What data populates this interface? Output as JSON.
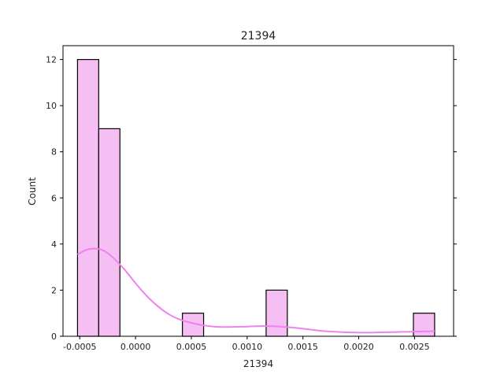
{
  "chart_data": {
    "type": "bar",
    "title": "21394",
    "xlabel": "21394",
    "ylabel": "Count",
    "xlim": [
      -0.00065,
      0.00285
    ],
    "ylim": [
      0,
      12.6
    ],
    "xticks": [
      {
        "value": -0.0005,
        "label": "-0.0005"
      },
      {
        "value": 0.0,
        "label": "0.0000"
      },
      {
        "value": 0.0005,
        "label": "0.0005"
      },
      {
        "value": 0.001,
        "label": "0.0010"
      },
      {
        "value": 0.0015,
        "label": "0.0015"
      },
      {
        "value": 0.002,
        "label": "0.0020"
      },
      {
        "value": 0.0025,
        "label": "0.0025"
      }
    ],
    "yticks": [
      {
        "value": 0,
        "label": "0"
      },
      {
        "value": 2,
        "label": "2"
      },
      {
        "value": 4,
        "label": "4"
      },
      {
        "value": 6,
        "label": "6"
      },
      {
        "value": 8,
        "label": "8"
      },
      {
        "value": 10,
        "label": "10"
      },
      {
        "value": 12,
        "label": "12"
      }
    ],
    "bins": [
      {
        "x0": -0.00052,
        "x1": -0.00033,
        "count": 12
      },
      {
        "x0": -0.00033,
        "x1": -0.00014,
        "count": 9
      },
      {
        "x0": 0.00042,
        "x1": 0.00061,
        "count": 1
      },
      {
        "x0": 0.00117,
        "x1": 0.00136,
        "count": 2
      },
      {
        "x0": 0.00249,
        "x1": 0.00268,
        "count": 1
      }
    ],
    "kde": {
      "x": [
        -0.00052,
        -0.00044,
        -0.00036,
        -0.00028,
        -0.0002,
        -0.0001,
        0.0,
        0.0001,
        0.0002,
        0.0003,
        0.0004,
        0.0005,
        0.0006,
        0.0007,
        0.0008,
        0.0009,
        0.001,
        0.0011,
        0.0012,
        0.0013,
        0.0014,
        0.0015,
        0.0016,
        0.0017,
        0.0018,
        0.0019,
        0.002,
        0.0021,
        0.0022,
        0.0023,
        0.0024,
        0.0025,
        0.00268
      ],
      "y": [
        3.55,
        3.75,
        3.8,
        3.7,
        3.4,
        2.9,
        2.3,
        1.75,
        1.3,
        0.95,
        0.72,
        0.58,
        0.48,
        0.42,
        0.4,
        0.41,
        0.42,
        0.44,
        0.44,
        0.42,
        0.38,
        0.33,
        0.27,
        0.22,
        0.19,
        0.17,
        0.16,
        0.16,
        0.17,
        0.18,
        0.19,
        0.2,
        0.22
      ]
    },
    "colors": {
      "bar_fill": "#f5bff3",
      "bar_edge": "#000000",
      "kde_line": "#ee82ee"
    },
    "grid": false,
    "legend": false
  }
}
